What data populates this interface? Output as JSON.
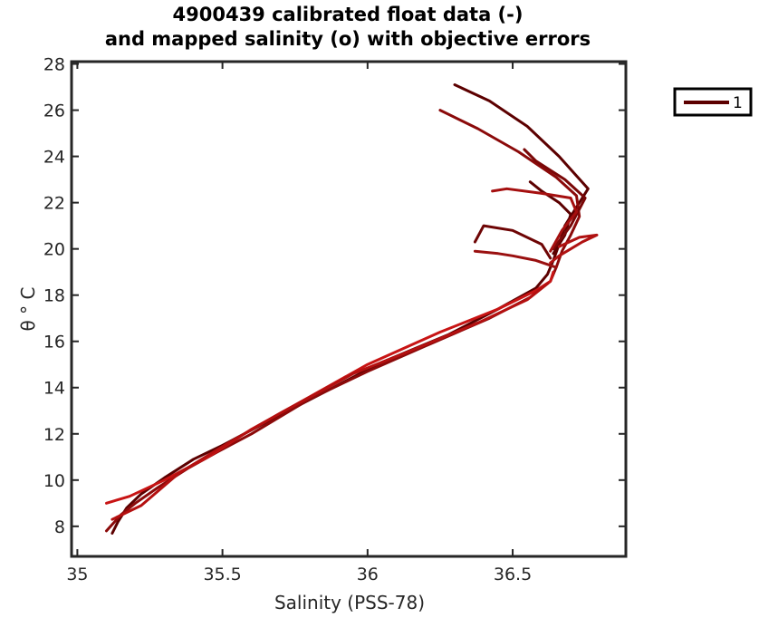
{
  "chart_data": {
    "type": "line",
    "title_line1": "4900439 calibrated float data (-)",
    "title_line2": "and mapped salinity (o) with objective errors",
    "xlabel": "Salinity (PSS-78)",
    "ylabel": "θ ° C",
    "xlim": [
      34.98,
      36.89
    ],
    "ylim": [
      6.7,
      28.1
    ],
    "xticks": [
      35,
      35.5,
      36,
      36.5
    ],
    "xtick_labels": [
      "35",
      "35.5",
      "36",
      "36.5"
    ],
    "yticks": [
      8,
      10,
      12,
      14,
      16,
      18,
      20,
      22,
      24,
      26,
      28
    ],
    "ytick_labels": [
      "8",
      "10",
      "12",
      "14",
      "16",
      "18",
      "20",
      "22",
      "24",
      "26",
      "28"
    ],
    "legend": {
      "placement": "outside-top-right",
      "entries": [
        "1"
      ]
    },
    "grid": false,
    "colors": {
      "dark": "#5c0000",
      "mid": "#8b0a0a",
      "bright": "#c81414",
      "axis": "#262626"
    },
    "series": [
      {
        "name": "1",
        "color": "#5c0000",
        "x": [
          35.12,
          35.14,
          35.17,
          35.22,
          35.3,
          35.4,
          35.5,
          35.65,
          35.85,
          36.05,
          36.28,
          36.45,
          36.58,
          36.62,
          36.64,
          36.66,
          36.68,
          36.72,
          36.76,
          36.66,
          36.55,
          36.42,
          36.3
        ],
        "y": [
          7.7,
          8.2,
          8.8,
          9.4,
          10.1,
          10.9,
          11.5,
          12.5,
          13.8,
          15.1,
          16.3,
          17.4,
          18.3,
          18.9,
          19.5,
          20.2,
          21.0,
          21.8,
          22.6,
          24.0,
          25.3,
          26.4,
          27.1
        ]
      },
      {
        "name": "",
        "color": "#8b0a0a",
        "x": [
          35.1,
          35.15,
          35.2,
          35.28,
          35.38,
          35.48,
          35.6,
          35.8,
          36.0,
          36.2,
          36.42,
          36.56,
          36.63,
          36.65,
          36.67,
          36.7,
          36.73,
          36.72,
          36.65,
          36.52,
          36.38,
          36.25
        ],
        "y": [
          7.8,
          8.5,
          9.0,
          9.7,
          10.5,
          11.2,
          12.0,
          13.5,
          14.7,
          15.8,
          17.0,
          17.9,
          18.6,
          19.2,
          19.9,
          20.6,
          21.4,
          22.3,
          23.1,
          24.2,
          25.2,
          26.0
        ]
      },
      {
        "name": "",
        "color": "#6e0505",
        "x": [
          36.63,
          36.6,
          36.5,
          36.4,
          36.37
        ],
        "y": [
          19.6,
          20.2,
          20.8,
          21.0,
          20.3
        ]
      },
      {
        "name": "",
        "color": "#9a1010",
        "x": [
          36.65,
          36.58,
          36.5,
          36.45,
          36.37
        ],
        "y": [
          19.2,
          19.5,
          19.7,
          19.8,
          19.9
        ]
      },
      {
        "name": "",
        "color": "#5c0000",
        "x": [
          36.64,
          36.68,
          36.7,
          36.66,
          36.6,
          36.56
        ],
        "y": [
          19.8,
          20.6,
          21.5,
          22.0,
          22.5,
          22.9
        ]
      },
      {
        "name": "",
        "color": "#b01212",
        "x": [
          36.63,
          36.66,
          36.7,
          36.74,
          36.79,
          36.73,
          36.66
        ],
        "y": [
          19.4,
          19.7,
          20.0,
          20.3,
          20.6,
          20.5,
          20.1
        ]
      },
      {
        "name": "",
        "color": "#7a0707",
        "x": [
          36.64,
          36.7,
          36.75,
          36.68,
          36.58,
          36.54
        ],
        "y": [
          20.0,
          21.0,
          22.2,
          23.0,
          23.8,
          24.3
        ]
      },
      {
        "name": "",
        "color": "#a50f0f",
        "x": [
          36.63,
          36.67,
          36.72,
          36.7,
          36.6,
          36.48,
          36.43
        ],
        "y": [
          19.9,
          20.8,
          21.6,
          22.2,
          22.4,
          22.6,
          22.5
        ]
      },
      {
        "name": "",
        "color": "#c81414",
        "x": [
          35.1,
          35.18,
          35.3,
          35.45,
          35.6,
          35.8,
          36.0,
          36.25,
          36.45,
          36.58,
          36.63,
          36.64
        ],
        "y": [
          9.0,
          9.3,
          10.0,
          11.0,
          12.2,
          13.6,
          15.0,
          16.4,
          17.4,
          18.2,
          18.6,
          19.0
        ]
      },
      {
        "name": "",
        "color": "#b41010",
        "x": [
          35.12,
          35.22,
          35.35,
          35.52,
          35.7,
          35.95,
          36.15,
          36.38,
          36.55,
          36.62
        ],
        "y": [
          8.3,
          8.9,
          10.3,
          11.6,
          12.9,
          14.6,
          15.6,
          16.8,
          17.8,
          18.5
        ]
      }
    ]
  }
}
